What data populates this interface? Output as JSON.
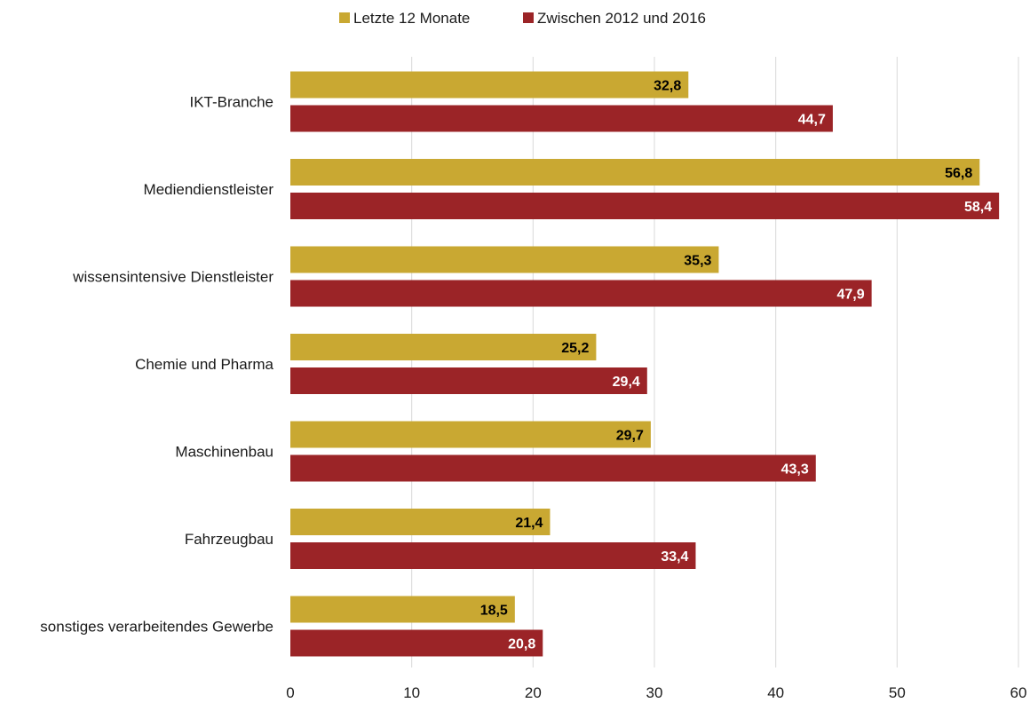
{
  "chart_data": {
    "type": "bar",
    "orientation": "horizontal",
    "title": "",
    "xlabel": "",
    "ylabel": "",
    "xlim": [
      0,
      60
    ],
    "ticks": [
      "0",
      "10",
      "20",
      "30",
      "40",
      "50",
      "60"
    ],
    "tick_values": [
      0,
      10,
      20,
      30,
      40,
      50,
      60
    ],
    "grid": true,
    "legend_position": "top",
    "categories": [
      "IKT-Branche",
      "Mediendienstleister",
      "wissensintensive Dienstleister",
      "Chemie und Pharma",
      "Maschinenbau",
      "Fahrzeugbau",
      "sonstiges verarbeitendes Gewerbe"
    ],
    "series": [
      {
        "name": "Letzte 12 Monate",
        "color": "#c9a832",
        "label_color": "#000000",
        "values": [
          32.8,
          56.8,
          35.3,
          25.2,
          29.7,
          21.4,
          18.5
        ],
        "labels": [
          "32,8",
          "56,8",
          "35,3",
          "25,2",
          "29,7",
          "21,4",
          "18,5"
        ]
      },
      {
        "name": "Zwischen 2012 und 2016",
        "color": "#9b2427",
        "label_color": "#ffffff",
        "values": [
          44.7,
          58.4,
          47.9,
          29.4,
          43.3,
          33.4,
          20.8
        ],
        "labels": [
          "44,7",
          "58,4",
          "47,9",
          "29,4",
          "43,3",
          "33,4",
          "20,8"
        ]
      }
    ]
  }
}
